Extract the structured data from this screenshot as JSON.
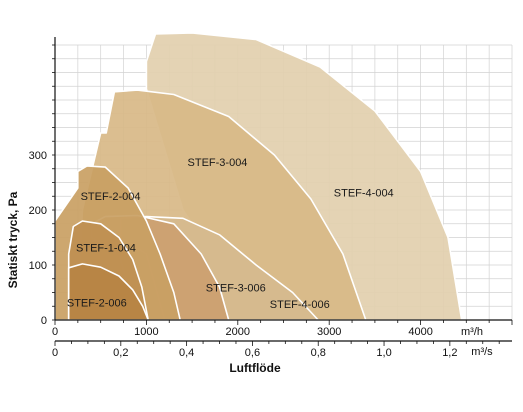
{
  "chart_data": {
    "type": "area",
    "ylabel": "Statiskt tryck, Pa",
    "xlabel": "Luftflöde",
    "x_unit_top": "m³/h",
    "x_unit_bottom": "m³/s",
    "xlim": [
      0,
      5000
    ],
    "ylim": [
      0,
      500
    ],
    "x_ticks_top": [
      {
        "value": 0,
        "label": "0"
      },
      {
        "value": 1000,
        "label": "1000"
      },
      {
        "value": 2000,
        "label": "2000"
      },
      {
        "value": 3000,
        "label": "3000"
      },
      {
        "value": 4000,
        "label": "4000"
      }
    ],
    "x_ticks_bottom": [
      {
        "value": 0,
        "label": "0"
      },
      {
        "value": 0.2,
        "label": "0,2"
      },
      {
        "value": 0.4,
        "label": "0,4"
      },
      {
        "value": 0.6,
        "label": "0,6"
      },
      {
        "value": 0.8,
        "label": "0,8"
      },
      {
        "value": 1.0,
        "label": "1,0"
      },
      {
        "value": 1.2,
        "label": "1,2"
      }
    ],
    "y_ticks": [
      {
        "value": 0,
        "label": "0"
      },
      {
        "value": 100,
        "label": "100"
      },
      {
        "value": 200,
        "label": "200"
      },
      {
        "value": 300,
        "label": "300"
      }
    ],
    "grid": true,
    "series": [
      {
        "name": "STEF-4-004",
        "color": "#e2cfae",
        "outline": [
          [
            1000,
            470
          ],
          [
            1100,
            520
          ],
          [
            1500,
            522
          ],
          [
            2200,
            510
          ],
          [
            2900,
            460
          ],
          [
            3500,
            380
          ],
          [
            4000,
            270
          ],
          [
            4300,
            150
          ],
          [
            4450,
            0
          ],
          [
            2200,
            0
          ],
          [
            1400,
            200
          ],
          [
            1000,
            420
          ]
        ]
      },
      {
        "name": "STEF-3-004",
        "color": "#d8b887",
        "outline": [
          [
            560,
            340
          ],
          [
            650,
            415
          ],
          [
            900,
            418
          ],
          [
            1300,
            410
          ],
          [
            1900,
            370
          ],
          [
            2400,
            300
          ],
          [
            2800,
            220
          ],
          [
            3150,
            120
          ],
          [
            3400,
            0
          ],
          [
            250,
            0
          ],
          [
            300,
            200
          ],
          [
            500,
            340
          ]
        ]
      },
      {
        "name": "STEF-4-006",
        "color": "#d6ba8e",
        "outline": [
          [
            720,
            185
          ],
          [
            1000,
            188
          ],
          [
            1400,
            185
          ],
          [
            1800,
            155
          ],
          [
            2200,
            100
          ],
          [
            2600,
            50
          ],
          [
            2880,
            0
          ],
          [
            1200,
            0
          ],
          [
            1000,
            120
          ],
          [
            720,
            150
          ]
        ]
      },
      {
        "name": "STEF-3-006",
        "color": "#cca070",
        "outline": [
          [
            400,
            175
          ],
          [
            550,
            188
          ],
          [
            900,
            190
          ],
          [
            1300,
            175
          ],
          [
            1600,
            120
          ],
          [
            1800,
            60
          ],
          [
            1900,
            0
          ],
          [
            900,
            0
          ],
          [
            700,
            120
          ],
          [
            400,
            150
          ]
        ]
      },
      {
        "name": "STEF-2-004",
        "color": "#c9a063",
        "outline": [
          [
            250,
            270
          ],
          [
            350,
            280
          ],
          [
            550,
            278
          ],
          [
            800,
            240
          ],
          [
            1000,
            180
          ],
          [
            1150,
            120
          ],
          [
            1300,
            50
          ],
          [
            1370,
            0
          ],
          [
            0,
            0
          ],
          [
            0,
            180
          ],
          [
            250,
            240
          ]
        ]
      },
      {
        "name": "STEF-1-004",
        "color": "#bf8f51",
        "outline": [
          [
            200,
            170
          ],
          [
            300,
            180
          ],
          [
            500,
            175
          ],
          [
            700,
            150
          ],
          [
            850,
            110
          ],
          [
            950,
            60
          ],
          [
            1020,
            0
          ],
          [
            150,
            0
          ],
          [
            150,
            120
          ]
        ]
      },
      {
        "name": "STEF-2-006",
        "color": "#b78444",
        "outline": [
          [
            150,
            95
          ],
          [
            300,
            102
          ],
          [
            500,
            96
          ],
          [
            700,
            80
          ],
          [
            850,
            55
          ],
          [
            960,
            25
          ],
          [
            1020,
            0
          ],
          [
            150,
            0
          ]
        ]
      }
    ],
    "labels": [
      {
        "text": "STEF-3-004",
        "x": 1450,
        "y": 280
      },
      {
        "text": "STEF-4-004",
        "x": 3050,
        "y": 225
      },
      {
        "text": "STEF-2-004",
        "x": 280,
        "y": 218
      },
      {
        "text": "STEF-1-004",
        "x": 230,
        "y": 125
      },
      {
        "text": "STEF-2-006",
        "x": 130,
        "y": 25
      },
      {
        "text": "STEF-3-006",
        "x": 1650,
        "y": 52
      },
      {
        "text": "STEF-4-006",
        "x": 2350,
        "y": 22
      }
    ]
  }
}
